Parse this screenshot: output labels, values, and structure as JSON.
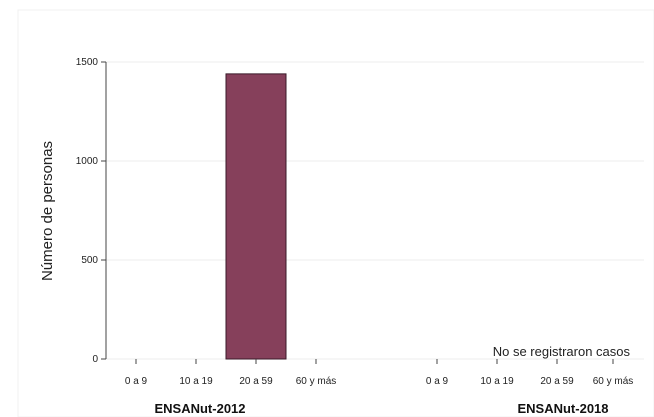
{
  "chart_data": {
    "type": "bar",
    "ylabel": "Número de personas",
    "yticks": [
      0,
      500,
      1000,
      1500
    ],
    "ylim": [
      0,
      1500
    ],
    "grid": true,
    "colors": {
      "bar": "#86405b",
      "bar_edge": "#3a1a28",
      "grid": "#ececec",
      "axis": "#444444"
    },
    "groups": [
      {
        "name": "ENSANut-2012",
        "categories": [
          "0 a 9",
          "10 a 19",
          "20 a 59",
          "60 y más"
        ],
        "values": [
          0,
          0,
          1440,
          0
        ]
      },
      {
        "name": "ENSANut-2018",
        "categories": [
          "0 a 9",
          "10 a 19",
          "20 a 59",
          "60 y más"
        ],
        "values": [
          null,
          null,
          null,
          null
        ],
        "annotation": "No se registraron casos"
      }
    ]
  }
}
